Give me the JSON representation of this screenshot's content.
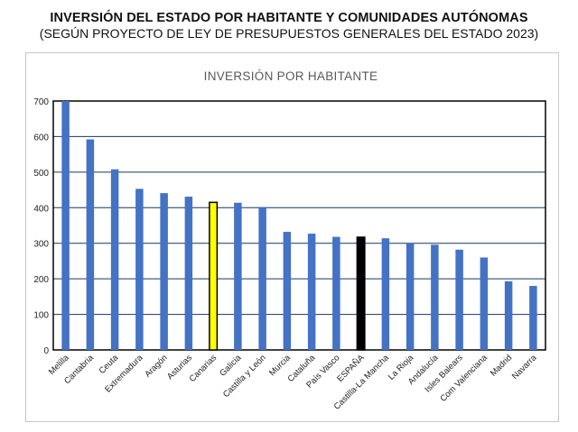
{
  "header": {
    "title": "INVERSIÓN DEL ESTADO POR HABITANTE Y COMUNIDADES AUTÓNOMAS",
    "subtitle": "(SEGÚN PROYECTO DE LEY DE PRESUPUESTOS GENERALES DEL ESTADO 2023)"
  },
  "chart_data": {
    "type": "bar",
    "title": "INVERSIÓN POR HABITANTE",
    "xlabel": "",
    "ylabel": "",
    "ylim": [
      0,
      700
    ],
    "yticks": [
      0,
      100,
      200,
      300,
      400,
      500,
      600,
      700
    ],
    "grid": true,
    "categories": [
      "Melilla",
      "Cantabria",
      "Ceuta",
      "Extremadura",
      "Aragón",
      "Asturias",
      "Canarias",
      "Galicia",
      "Castilla y León",
      "Murcia",
      "Cataluña",
      "País Vasco",
      "ESPAÑA",
      "Castilla-La Mancha",
      "La Rioja",
      "Andalucía",
      "Isles Balears",
      "Com Valenciana",
      "Madrid",
      "Navarra"
    ],
    "values": [
      700,
      592,
      508,
      453,
      441,
      431,
      415,
      414,
      402,
      332,
      327,
      318,
      317,
      314,
      300,
      296,
      282,
      260,
      193,
      180
    ],
    "bar_colors": {
      "default": "#4472c4",
      "Canarias": "#ffff00",
      "ESPAÑA": "#000000"
    }
  }
}
